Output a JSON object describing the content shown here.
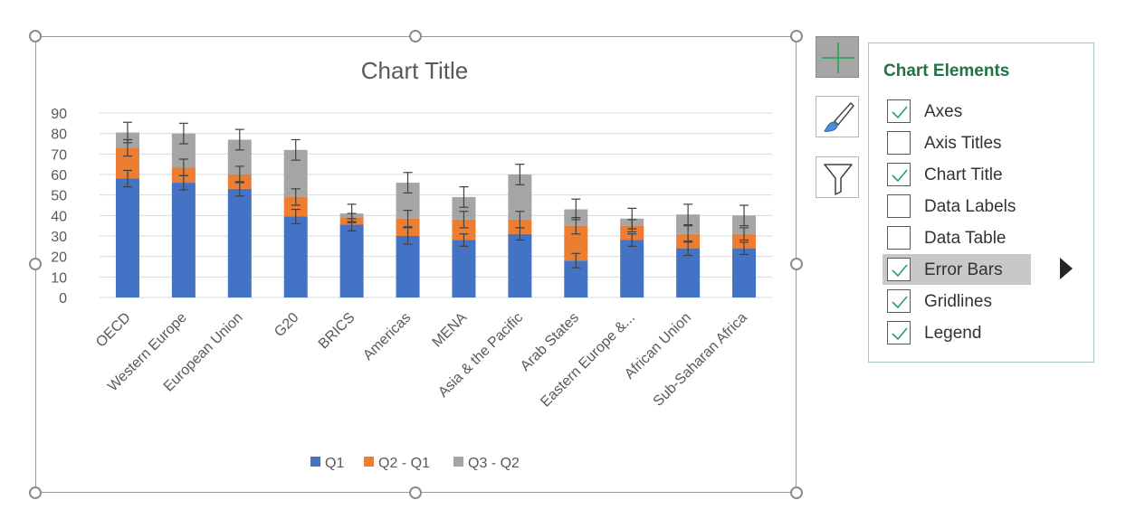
{
  "chart_data": {
    "type": "bar",
    "stacked": true,
    "title": "Chart Title",
    "categories": [
      "OECD",
      "Western Europe",
      "European Union",
      "G20",
      "BRICS",
      "Americas",
      "MENA",
      "Asia & the Pacific",
      "Arab States",
      "Eastern Europe &...",
      "African Union",
      "Sub-Saharan Africa"
    ],
    "series": [
      {
        "name": "Q1",
        "color": "#4472C4",
        "values": [
          58,
          56,
          53,
          39.5,
          35.5,
          30,
          28,
          31,
          18,
          28,
          24,
          24
        ],
        "errors": [
          4,
          3.5,
          3.5,
          3.5,
          3,
          4,
          3,
          3,
          3.5,
          3,
          3.5,
          3
        ]
      },
      {
        "name": "Q2 - Q1",
        "color": "#ED7D31",
        "values": [
          15,
          7.5,
          7,
          9.5,
          3.5,
          8.5,
          10,
          7,
          17,
          7,
          7,
          7
        ],
        "errors": [
          4,
          4,
          4,
          4,
          2,
          4,
          4,
          4,
          4,
          3,
          4,
          3
        ]
      },
      {
        "name": "Q3 - Q2",
        "color": "#A5A5A5",
        "values": [
          7.5,
          16.5,
          17,
          23,
          2,
          17.5,
          11,
          22,
          8,
          3.5,
          9.5,
          9
        ],
        "errors": [
          5,
          5,
          5,
          5,
          4.5,
          5,
          5,
          5,
          5,
          5,
          5,
          5
        ]
      }
    ],
    "ylim": [
      0,
      90
    ],
    "yticks": [
      0,
      10,
      20,
      30,
      40,
      50,
      60,
      70,
      80,
      90
    ],
    "grid": true,
    "legend": "bottom"
  },
  "panel": {
    "title": "Chart Elements",
    "items": [
      {
        "label": "Axes",
        "checked": true
      },
      {
        "label": "Axis Titles",
        "checked": false
      },
      {
        "label": "Chart Title",
        "checked": true
      },
      {
        "label": "Data Labels",
        "checked": false
      },
      {
        "label": "Data Table",
        "checked": false
      },
      {
        "label": "Error Bars",
        "checked": true,
        "highlighted": true
      },
      {
        "label": "Gridlines",
        "checked": true
      },
      {
        "label": "Legend",
        "checked": true
      }
    ]
  },
  "side_buttons": {
    "chart_elements": "plus-icon",
    "chart_styles": "paintbrush-icon",
    "chart_filters": "funnel-icon"
  }
}
